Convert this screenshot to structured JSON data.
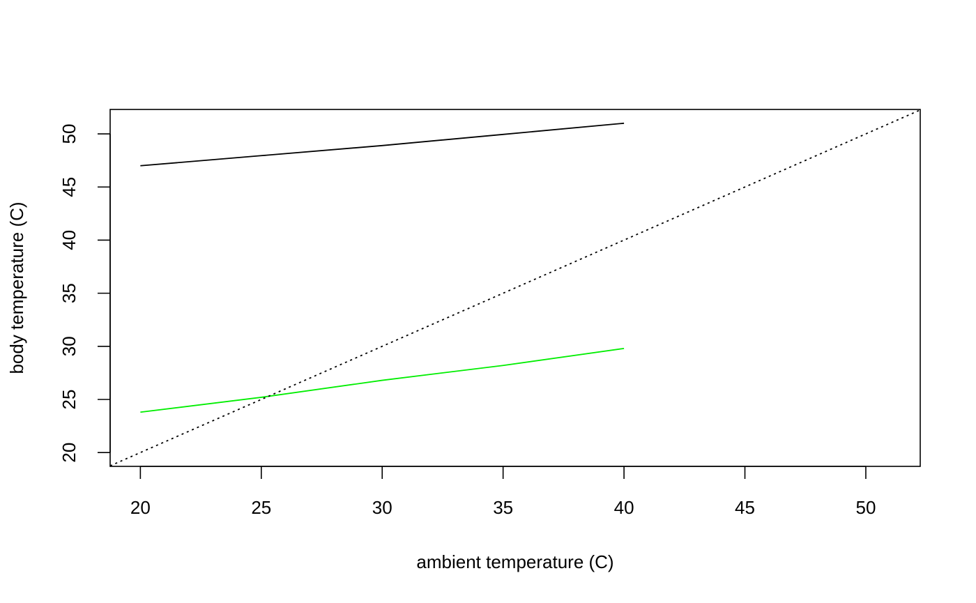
{
  "chart_data": {
    "type": "line",
    "title": "",
    "xlabel": "ambient temperature (C)",
    "ylabel": "body temperature (C)",
    "xlim": [
      18.75,
      52.25
    ],
    "ylim": [
      18.7,
      52.3
    ],
    "x_ticks": [
      20,
      25,
      30,
      35,
      40,
      45,
      50
    ],
    "y_ticks": [
      20,
      25,
      30,
      35,
      40,
      45,
      50
    ],
    "grid": false,
    "series": [
      {
        "color": "#000000",
        "style": "solid",
        "x": [
          20,
          25,
          30,
          35,
          40
        ],
        "y": [
          47.0,
          47.95,
          48.9,
          49.95,
          51.0
        ]
      },
      {
        "color": "#00ee00",
        "style": "solid",
        "x": [
          20,
          25,
          30,
          35,
          40
        ],
        "y": [
          23.8,
          25.2,
          26.8,
          28.2,
          29.8
        ]
      },
      {
        "color": "#000000",
        "style": "dotted",
        "x": [
          18.75,
          52.25
        ],
        "y": [
          18.75,
          52.25
        ]
      }
    ]
  }
}
